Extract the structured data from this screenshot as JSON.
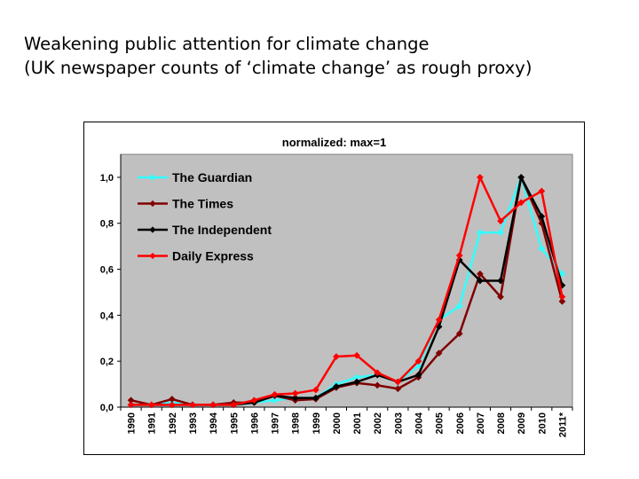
{
  "slide": {
    "title_line1": "Weakening public attention for climate change",
    "title_line2": "(UK newspaper counts of ‘climate change’ as rough proxy)"
  },
  "chart_data": {
    "type": "line",
    "title": "normalized: max=1",
    "xlabel": "",
    "ylabel": "",
    "ylim": [
      0,
      1.1
    ],
    "y_ticks": [
      "0,0",
      "0,2",
      "0,4",
      "0,6",
      "0,8",
      "1,0"
    ],
    "y_tick_values": [
      0,
      0.2,
      0.4,
      0.6,
      0.8,
      1.0
    ],
    "categories": [
      "1990",
      "1991",
      "1992",
      "1993",
      "1994",
      "1995",
      "1996",
      "1997",
      "1998",
      "1999",
      "2000",
      "2001",
      "2002",
      "2003",
      "2004",
      "2005",
      "2006",
      "2007",
      "2008",
      "2009",
      "2010",
      "2011*"
    ],
    "grid": false,
    "plot_background": "#c0c0c0",
    "legend_position": "top-left",
    "series": [
      {
        "name": "The Guardian",
        "color": "#33ffff",
        "marker": "diamond",
        "values": [
          0.01,
          0.01,
          0.02,
          0.01,
          0.01,
          0.01,
          0.02,
          0.03,
          0.04,
          0.04,
          0.1,
          0.13,
          0.14,
          0.11,
          0.18,
          0.38,
          0.44,
          0.76,
          0.76,
          1.0,
          0.69,
          0.58
        ]
      },
      {
        "name": "The Times",
        "color": "#800000",
        "marker": "diamond",
        "values": [
          0.03,
          0.01,
          0.035,
          0.01,
          0.01,
          0.02,
          0.02,
          0.05,
          0.03,
          0.035,
          0.085,
          0.105,
          0.095,
          0.08,
          0.13,
          0.235,
          0.32,
          0.58,
          0.48,
          1.0,
          0.8,
          0.46
        ]
      },
      {
        "name": "The Independent",
        "color": "#000000",
        "marker": "diamond",
        "values": [
          0.01,
          0.01,
          0.01,
          0.01,
          0.01,
          0.01,
          0.02,
          0.05,
          0.04,
          0.04,
          0.09,
          0.11,
          0.14,
          0.11,
          0.14,
          0.35,
          0.64,
          0.55,
          0.55,
          1.0,
          0.83,
          0.53
        ]
      },
      {
        "name": "Daily Express",
        "color": "#ff0000",
        "marker": "diamond",
        "values": [
          0.01,
          0.01,
          0.01,
          0.01,
          0.01,
          0.01,
          0.03,
          0.055,
          0.06,
          0.075,
          0.22,
          0.225,
          0.15,
          0.11,
          0.2,
          0.38,
          0.66,
          1.0,
          0.81,
          0.89,
          0.94,
          0.48
        ]
      }
    ]
  }
}
